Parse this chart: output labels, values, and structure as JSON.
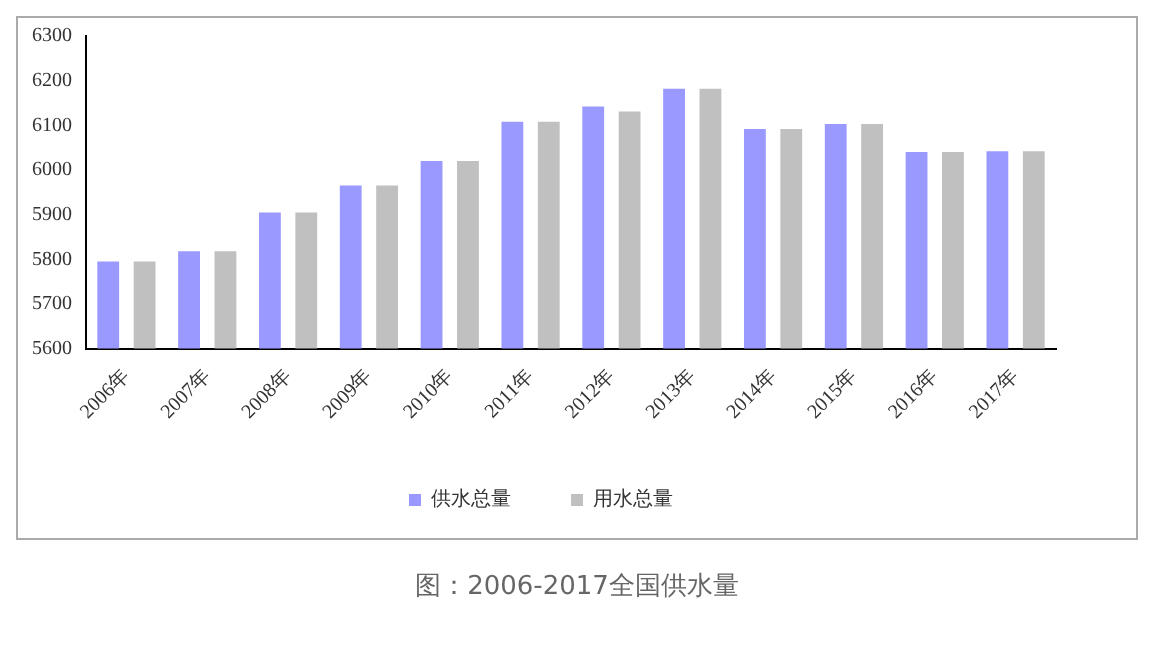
{
  "chart_data": {
    "type": "bar",
    "categories": [
      "2006年",
      "2007年",
      "2008年",
      "2009年",
      "2010年",
      "2011年",
      "2012年",
      "2013年",
      "2014年",
      "2015年",
      "2016年",
      "2017年"
    ],
    "series": [
      {
        "name": "供水总量",
        "color": "#9999ff",
        "values": [
          5795,
          5818,
          5905,
          5965,
          6020,
          6108,
          6142,
          6182,
          6092,
          6103,
          6040,
          6042
        ]
      },
      {
        "name": "用水总量",
        "color": "#c0c0c0",
        "values": [
          5795,
          5818,
          5905,
          5965,
          6020,
          6108,
          6131,
          6182,
          6092,
          6103,
          6040,
          6042
        ]
      }
    ],
    "ylim": [
      5600,
      6300
    ],
    "yticks": [
      5600,
      5700,
      5800,
      5900,
      6000,
      6100,
      6200,
      6300
    ],
    "grid": false,
    "legend": "bottom",
    "annotations": [
      "图：2006-2017全国供水量"
    ]
  }
}
